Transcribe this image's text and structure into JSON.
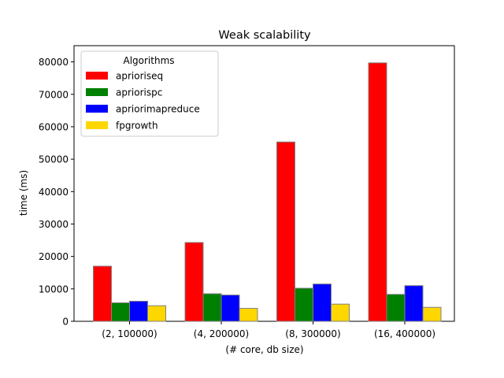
{
  "chart_data": {
    "type": "bar",
    "title": "Weak scalability",
    "xlabel": "(# core, db size)",
    "ylabel": "time (ms)",
    "categories": [
      "(2, 100000)",
      "(4, 200000)",
      "(8, 300000)",
      "(16, 400000)"
    ],
    "ylim": [
      0,
      85000
    ],
    "yticks": [
      0,
      10000,
      20000,
      30000,
      40000,
      50000,
      60000,
      70000,
      80000
    ],
    "grid": false,
    "legend": {
      "title": "Algorithms",
      "placement": "top-left"
    },
    "series": [
      {
        "name": "aprioriseq",
        "color": "#ff0000",
        "values": [
          17000,
          24300,
          55300,
          79700
        ]
      },
      {
        "name": "apriorispc",
        "color": "#008000",
        "values": [
          5700,
          8500,
          10200,
          8300
        ]
      },
      {
        "name": "apriorimapreduce",
        "color": "#0000ff",
        "values": [
          6200,
          8100,
          11500,
          11000
        ]
      },
      {
        "name": "fpgrowth",
        "color": "#ffd700",
        "values": [
          4800,
          4000,
          5300,
          4300
        ]
      }
    ]
  }
}
